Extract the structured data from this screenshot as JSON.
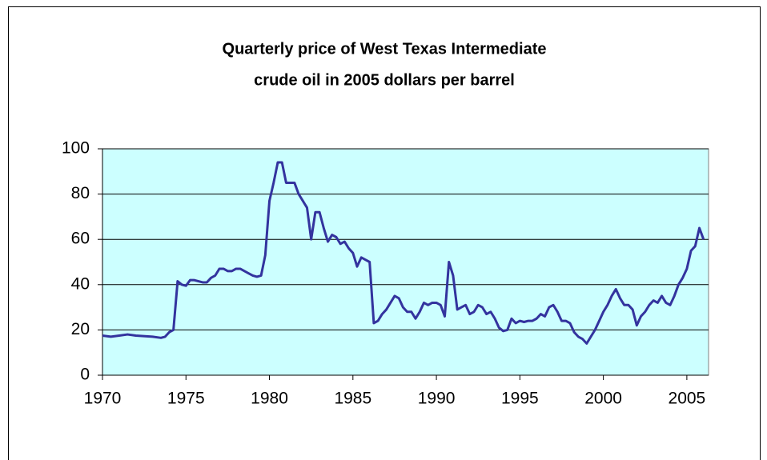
{
  "chart_data": {
    "type": "line",
    "title": [
      "Quarterly price of West Texas Intermediate",
      "crude oil in 2005 dollars per barrel"
    ],
    "color": "#33339e",
    "background": "#ccffff",
    "grid": true,
    "xlim": [
      1970,
      2006.3
    ],
    "xticks": [
      1970,
      1975,
      1980,
      1985,
      1990,
      1995,
      2000,
      2005
    ],
    "ylim": [
      0,
      100
    ],
    "yticks": [
      0,
      20,
      40,
      60,
      80,
      100
    ],
    "x": [
      1970,
      1970.5,
      1971,
      1971.5,
      1972,
      1973,
      1973.5,
      1973.75,
      1974,
      1974.25,
      1974.5,
      1974.75,
      1975,
      1975.25,
      1975.5,
      1975.75,
      1976,
      1976.25,
      1976.5,
      1976.75,
      1977,
      1977.25,
      1977.5,
      1977.75,
      1978,
      1978.25,
      1978.5,
      1978.75,
      1979,
      1979.25,
      1979.5,
      1979.75,
      1980,
      1980.25,
      1980.5,
      1980.75,
      1981,
      1981.25,
      1981.5,
      1981.75,
      1982,
      1982.25,
      1982.5,
      1982.75,
      1983,
      1983.25,
      1983.5,
      1983.75,
      1984,
      1984.25,
      1984.5,
      1984.75,
      1985,
      1985.25,
      1985.5,
      1985.75,
      1986,
      1986.25,
      1986.5,
      1986.75,
      1987,
      1987.25,
      1987.5,
      1987.75,
      1988,
      1988.25,
      1988.5,
      1988.75,
      1989,
      1989.25,
      1989.5,
      1989.75,
      1990,
      1990.25,
      1990.5,
      1990.75,
      1991,
      1991.25,
      1991.5,
      1991.75,
      1992,
      1992.25,
      1992.5,
      1992.75,
      1993,
      1993.25,
      1993.5,
      1993.75,
      1994,
      1994.25,
      1994.5,
      1994.75,
      1995,
      1995.25,
      1995.5,
      1995.75,
      1996,
      1996.25,
      1996.5,
      1996.75,
      1997,
      1997.25,
      1997.5,
      1997.75,
      1998,
      1998.25,
      1998.5,
      1998.75,
      1999,
      1999.25,
      1999.5,
      1999.75,
      2000,
      2000.25,
      2000.5,
      2000.75,
      2001,
      2001.25,
      2001.5,
      2001.75,
      2002,
      2002.25,
      2002.5,
      2002.75,
      2003,
      2003.25,
      2003.5,
      2003.75,
      2004,
      2004.25,
      2004.5,
      2004.75,
      2005,
      2005.25,
      2005.5,
      2005.75,
      2006
    ],
    "values": [
      17.5,
      17,
      17.5,
      18,
      17.5,
      17,
      16.5,
      17,
      19,
      20,
      41.5,
      40,
      39.5,
      42,
      42,
      41.5,
      41,
      41,
      43,
      44,
      47,
      47,
      46,
      46,
      47,
      47,
      46,
      45,
      44,
      43.5,
      44,
      53,
      77,
      85,
      94,
      94,
      85,
      85,
      85,
      80,
      77,
      74,
      60,
      72,
      72,
      65,
      59,
      62,
      61,
      58,
      59,
      56,
      54,
      48,
      52,
      51,
      50,
      23,
      24,
      27,
      29,
      32,
      35,
      34,
      30,
      28,
      28,
      25,
      28,
      32,
      31,
      32,
      32,
      31,
      26,
      50,
      44,
      29,
      30,
      31,
      27,
      28,
      31,
      30,
      27,
      28,
      25,
      21,
      19.5,
      20,
      25,
      23,
      24,
      23.5,
      24,
      24,
      25,
      27,
      26,
      30,
      31,
      28,
      24,
      24,
      23,
      19,
      17,
      16,
      14,
      17,
      20,
      24,
      28,
      31,
      35,
      38,
      34,
      31,
      31,
      29,
      22,
      26,
      28,
      31,
      33,
      32,
      35,
      32,
      31,
      35,
      40,
      43,
      47,
      55,
      57,
      65,
      60
    ]
  }
}
